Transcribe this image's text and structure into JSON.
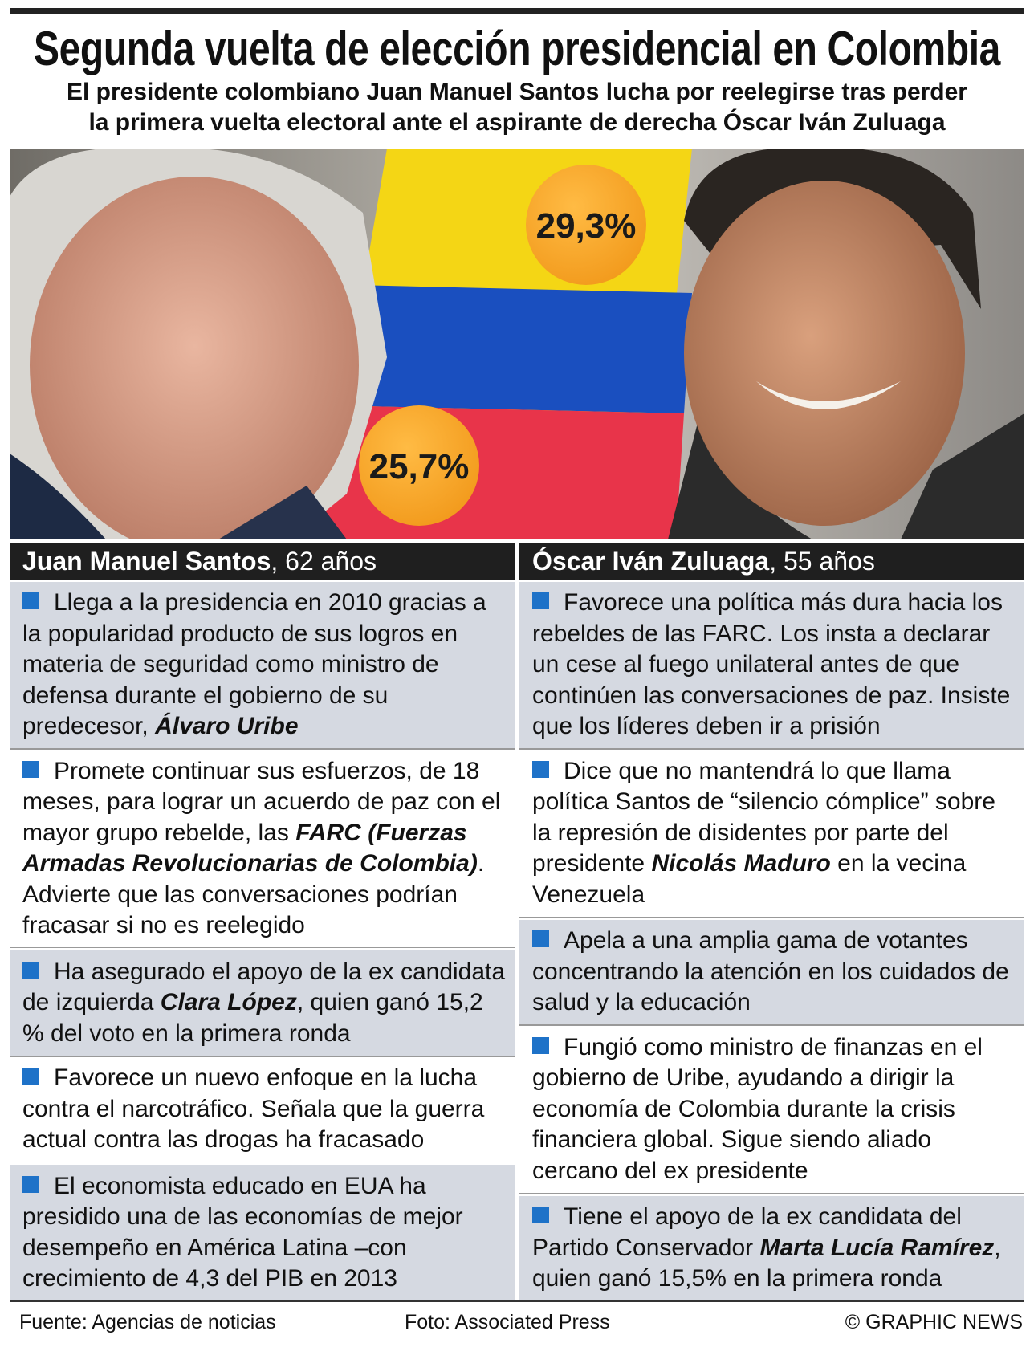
{
  "header": {
    "title": "Segunda vuelta de elección presidencial en Colombia",
    "subtitle": [
      "El presidente colombiano Juan Manuel Santos lucha por reelegirse tras perder",
      "la primera vuelta electoral ante el aspirante de derecha Óscar Iván Zuluaga"
    ]
  },
  "photo": {
    "left_pct": "25,7%",
    "right_pct": "29,3%"
  },
  "columns": [
    {
      "name": "Juan Manuel Santos",
      "age": ", 62 años",
      "bullets": [
        [
          "Llega a la presidencia en 2010 gracias a la popularidad producto de sus logros en materia de seguridad como ministro de defensa durante el gobierno de su predecesor, ",
          {
            "bold": "Álvaro Uribe"
          }
        ],
        [
          "Promete continuar sus esfuerzos, de 18 meses, para lograr un acuerdo de paz con el mayor grupo rebelde, las ",
          {
            "bold": "FARC (Fuerzas Armadas Revolucionarias de Colombia)"
          },
          ". Advierte que las conversaciones podrían fracasar si no es reelegido"
        ],
        [
          "Ha asegurado el apoyo de la ex candidata de izquierda ",
          {
            "bold": "Clara López"
          },
          ", quien ganó 15,2 % del voto en la primera ronda"
        ],
        [
          "Favorece un nuevo enfoque en la lucha contra el narcotráfico. Señala que la guerra actual contra las drogas ha fracasado"
        ],
        [
          "El economista educado en EUA ha presidido una de las economías de mejor desempeño en América Latina –con crecimiento de 4,3 del PIB en 2013"
        ]
      ]
    },
    {
      "name": "Óscar Iván Zuluaga",
      "age": ", 55 años",
      "bullets": [
        [
          "Favorece una política más dura hacia los rebeldes de las FARC. Los insta a declarar un cese al fuego unilateral antes de que continúen las conversaciones de paz. Insiste que los líderes deben ir a prisión"
        ],
        [
          "Dice que no mantendrá lo que llama política Santos de “silencio cómplice” sobre la represión de disidentes por parte del presidente ",
          {
            "bold": "Nicolás Maduro"
          },
          " en la vecina Venezuela"
        ],
        [
          "Apela a una amplia gama de votantes concentrando la atención en los cuidados de salud y la educación"
        ],
        [
          "Fungió como ministro de finanzas en el gobierno de Uribe, ayudando a dirigir la economía de Colombia durante la crisis financiera global. Sigue siendo aliado cercano del ex presidente"
        ],
        [
          "Tiene el apoyo de la ex candidata del Partido Conservador ",
          {
            "bold": "Marta Lucía Ramírez"
          },
          ", quien ganó 15,5% en la primera ronda"
        ]
      ]
    }
  ],
  "footer": {
    "source": "Fuente: Agencias de noticias",
    "photo": "Foto: Associated Press",
    "copyright": "© GRAPHIC NEWS"
  }
}
